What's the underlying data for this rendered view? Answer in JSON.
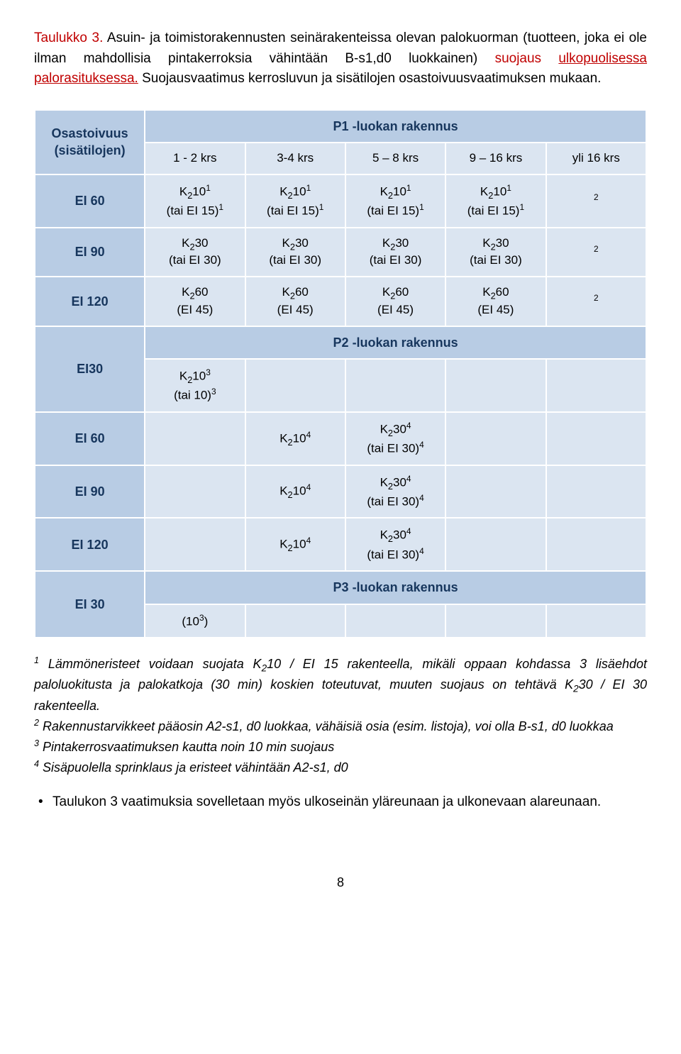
{
  "caption": {
    "label": "Taulukko 3.",
    "part1": " Asuin- ja toimistorakennusten seinärakenteissa olevan palokuorman (tuotteen, joka ei ole ilman mahdollisia pintakerroksia vähintään B-s1,d0 luokkainen) ",
    "redpart": "suojaus ",
    "underline": "ulkopuolisessa palorasituksessa.",
    "part2": " Suojausvaatimus kerrosluvun ja sisätilojen osastoivuusvaatimuksen mukaan."
  },
  "table": {
    "p1_header": "P1 -luokan rakennus",
    "p2_header": "P2 -luokan rakennus",
    "p3_header": "P3 -luokan rakennus",
    "row_header": "Osastoivuus (sisätilojen)",
    "cols": [
      "1 - 2 krs",
      "3-4 krs",
      "5 – 8 krs",
      "9 – 16 krs",
      "yli 16 krs"
    ],
    "rows_p1": [
      {
        "label": "EI 60",
        "c": [
          "K₂10¹\n(tai EI 15)¹",
          "K₂10¹\n(tai EI 15)¹",
          "K₂10¹\n(tai EI 15)¹",
          "K₂10¹\n(tai EI 15)¹",
          "²"
        ]
      },
      {
        "label": "EI 90",
        "c": [
          "K₂30\n(tai EI 30)",
          "K₂30\n(tai EI 30)",
          "K₂30\n(tai EI 30)",
          "K₂30\n(tai EI 30)",
          "²"
        ]
      },
      {
        "label": "EI 120",
        "c": [
          "K₂60\n(EI 45)",
          "K₂60\n(EI 45)",
          "K₂60\n(EI 45)",
          "K₂60\n(EI 45)",
          "²"
        ]
      }
    ],
    "rows_p2": [
      {
        "label": "EI30",
        "c": [
          "K₂10³\n(tai 10)³",
          "",
          "",
          "",
          ""
        ]
      },
      {
        "label": "EI 60",
        "c": [
          "",
          "K₂10⁴",
          "K₂30⁴\n(tai EI 30)⁴",
          "",
          ""
        ]
      },
      {
        "label": "EI 90",
        "c": [
          "",
          "K₂10⁴",
          "K₂30⁴\n(tai EI 30)⁴",
          "",
          ""
        ]
      },
      {
        "label": "EI 120",
        "c": [
          "",
          "K₂10⁴",
          "K₂30⁴\n(tai EI 30)⁴",
          "",
          ""
        ]
      }
    ],
    "rows_p3": [
      {
        "label": "EI 30",
        "c": [
          "(10³)",
          "",
          "",
          "",
          ""
        ]
      }
    ]
  },
  "notes": {
    "n1": "¹ Lämmöneristeet voidaan suojata K₂10 / EI 15 rakenteella, mikäli oppaan kohdassa 3 lisäehdot paloluokitusta ja palokatkoja (30 min) koskien toteutuvat, muuten suojaus on tehtävä K₂30 / EI 30 rakenteella.",
    "n2": "² Rakennustarvikkeet pääosin A2-s1, d0 luokkaa, vähäisiä osia (esim. listoja), voi olla B-s1, d0 luokkaa",
    "n3": "³ Pintakerrosvaatimuksen kautta noin 10 min suojaus",
    "n4": "⁴ Sisäpuolella sprinklaus ja eristeet vähintään A2-s1, d0"
  },
  "bullet": "Taulukon 3 vaatimuksia sovelletaan myös ulkoseinän yläreunaan ja ulkonevaan alareunaan.",
  "pagenum": "8"
}
